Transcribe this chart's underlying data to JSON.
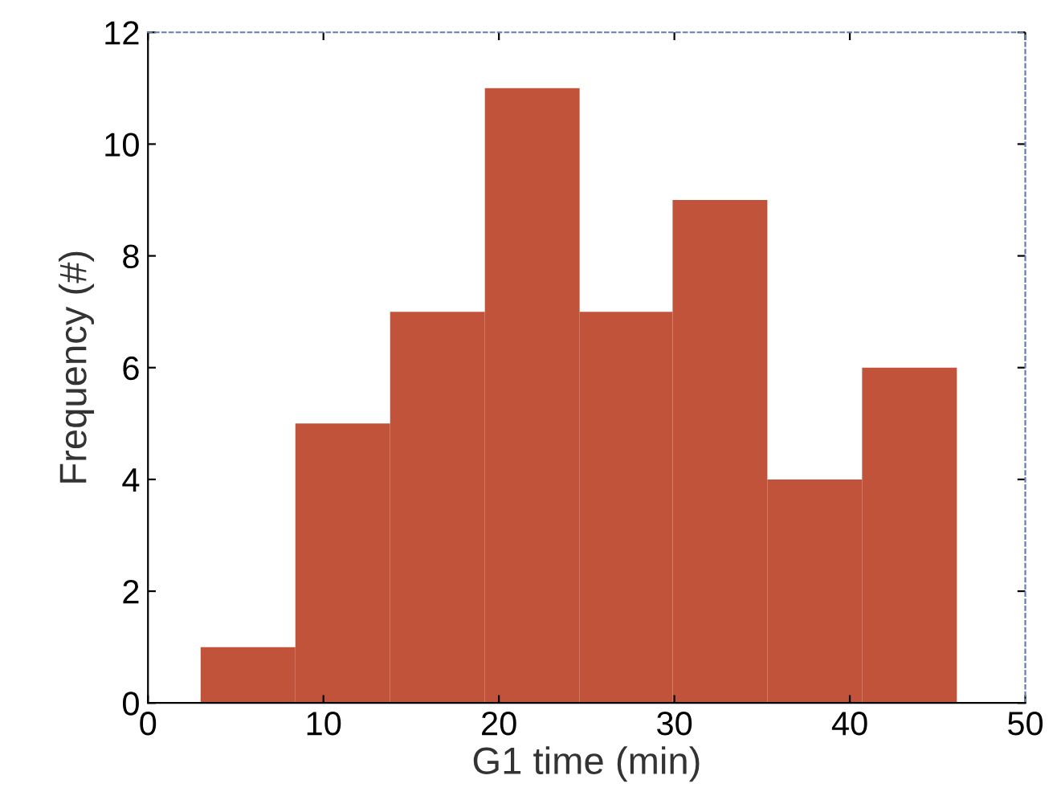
{
  "chart_data": {
    "type": "histogram",
    "xlabel": "G1 time (min)",
    "ylabel": "Frequency (#)",
    "bins": [
      3,
      8.4,
      13.8,
      19.2,
      24.6,
      29.9,
      35.3,
      40.7,
      46.1
    ],
    "values": [
      1,
      5,
      7,
      11,
      7,
      9,
      4,
      6
    ],
    "color": "#c1533a",
    "xlim": [
      0,
      50
    ],
    "ylim": [
      0,
      12
    ],
    "xticks": [
      0,
      10,
      20,
      30,
      40,
      50
    ],
    "yticks": [
      0,
      2,
      4,
      6,
      8,
      10,
      12
    ],
    "grid": false
  }
}
